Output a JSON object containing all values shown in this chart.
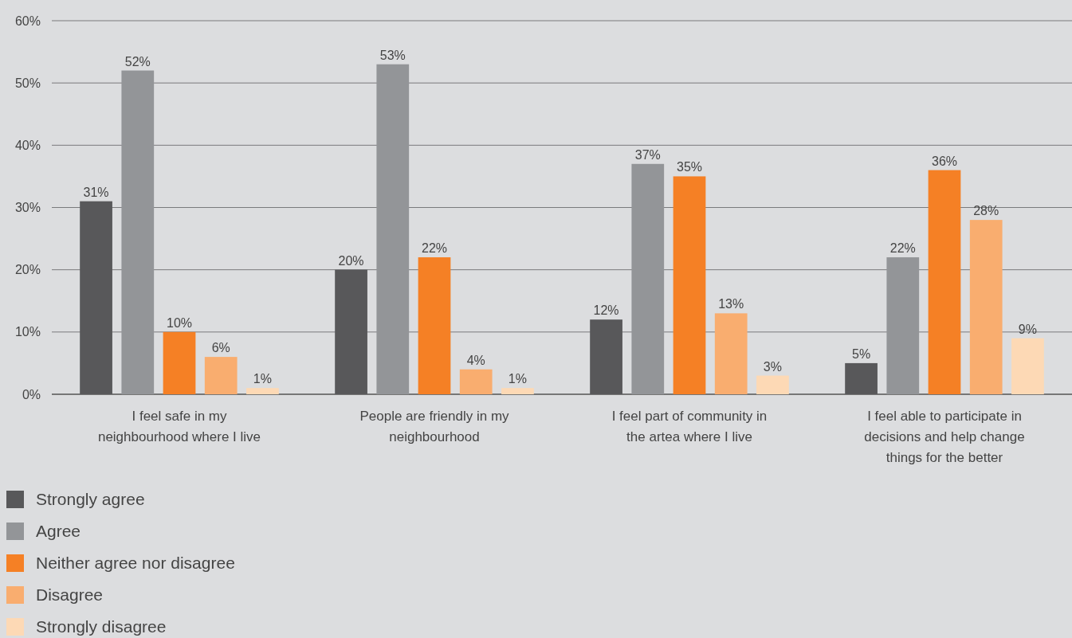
{
  "chart_data": {
    "type": "bar",
    "categories": [
      "I feel safe in my neighbourhood where I live",
      "People are friendly in my neighbourhood",
      "I feel part of community in the artea where I live",
      "I feel able to participate in decisions and help change things for the better"
    ],
    "series": [
      {
        "name": "Strongly agree",
        "color": "#58585a",
        "values": [
          31,
          20,
          12,
          5
        ],
        "value_labels": [
          "31%",
          "20%",
          "12%",
          "5%"
        ]
      },
      {
        "name": "Agree",
        "color": "#939598",
        "values": [
          52,
          53,
          37,
          22
        ],
        "value_labels": [
          "52%",
          "53%",
          "37%",
          "22%"
        ]
      },
      {
        "name": "Neither agree nor disagree",
        "color": "#f58025",
        "values": [
          10,
          22,
          35,
          36
        ],
        "value_labels": [
          "10%",
          "22%",
          "35%",
          "36%"
        ]
      },
      {
        "name": "Disagree",
        "color": "#f9ad6f",
        "values": [
          6,
          4,
          13,
          28
        ],
        "value_labels": [
          "6%",
          "4%",
          "13%",
          "28%"
        ]
      },
      {
        "name": "Strongly disagree",
        "color": "#fdd9b5",
        "values": [
          1,
          1,
          3,
          9
        ],
        "value_labels": [
          "1%",
          "1%",
          "3%",
          "9%"
        ]
      }
    ],
    "ylim": [
      0,
      60
    ],
    "yticks": [
      {
        "value": 0,
        "label": "0%"
      },
      {
        "value": 10,
        "label": "10%"
      },
      {
        "value": 20,
        "label": "20%"
      },
      {
        "value": 30,
        "label": "30%"
      },
      {
        "value": 40,
        "label": "40%"
      },
      {
        "value": 50,
        "label": "50%"
      },
      {
        "value": 60,
        "label": "60%"
      }
    ],
    "grid": "y",
    "legend": "bottom left"
  }
}
